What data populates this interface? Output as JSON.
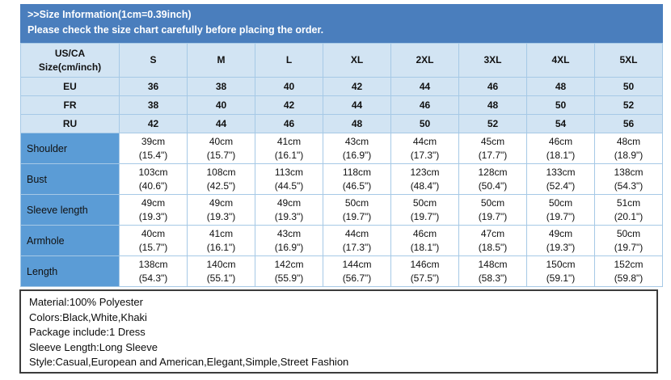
{
  "page": {
    "title_line1": ">>Size Information(1cm=0.39inch)",
    "title_line2": "Please check the size chart carefully before placing the order."
  },
  "table": {
    "corner_header_line1": "US/CA",
    "corner_header_line2": "Size(cm/inch)",
    "size_columns": [
      "S",
      "M",
      "L",
      "XL",
      "2XL",
      "3XL",
      "4XL",
      "5XL"
    ],
    "region_rows": [
      {
        "label": "EU",
        "values": [
          "36",
          "38",
          "40",
          "42",
          "44",
          "46",
          "48",
          "50"
        ]
      },
      {
        "label": "FR",
        "values": [
          "38",
          "40",
          "42",
          "44",
          "46",
          "48",
          "50",
          "52"
        ]
      },
      {
        "label": "RU",
        "values": [
          "42",
          "44",
          "46",
          "48",
          "50",
          "52",
          "54",
          "56"
        ]
      }
    ],
    "measurement_rows": [
      {
        "label": "Shoulder",
        "cm": [
          "39cm",
          "40cm",
          "41cm",
          "43cm",
          "44cm",
          "45cm",
          "46cm",
          "48cm"
        ],
        "inch": [
          "(15.4\")",
          "(15.7\")",
          "(16.1\")",
          "(16.9\")",
          "(17.3\")",
          "(17.7\")",
          "(18.1\")",
          "(18.9\")"
        ]
      },
      {
        "label": "Bust",
        "cm": [
          "103cm",
          "108cm",
          "113cm",
          "118cm",
          "123cm",
          "128cm",
          "133cm",
          "138cm"
        ],
        "inch": [
          "(40.6\")",
          "(42.5\")",
          "(44.5\")",
          "(46.5\")",
          "(48.4\")",
          "(50.4\")",
          "(52.4\")",
          "(54.3\")"
        ]
      },
      {
        "label": "Sleeve length",
        "cm": [
          "49cm",
          "49cm",
          "49cm",
          "50cm",
          "50cm",
          "50cm",
          "50cm",
          "51cm"
        ],
        "inch": [
          "(19.3\")",
          "(19.3\")",
          "(19.3\")",
          "(19.7\")",
          "(19.7\")",
          "(19.7\")",
          "(19.7\")",
          "(20.1\")"
        ]
      },
      {
        "label": "Armhole",
        "cm": [
          "40cm",
          "41cm",
          "43cm",
          "44cm",
          "46cm",
          "47cm",
          "49cm",
          "50cm"
        ],
        "inch": [
          "(15.7\")",
          "(16.1\")",
          "(16.9\")",
          "(17.3\")",
          "(18.1\")",
          "(18.5\")",
          "(19.3\")",
          "(19.7\")"
        ]
      },
      {
        "label": "Length",
        "cm": [
          "138cm",
          "140cm",
          "142cm",
          "144cm",
          "146cm",
          "148cm",
          "150cm",
          "152cm"
        ],
        "inch": [
          "(54.3\")",
          "(55.1\")",
          "(55.9\")",
          "(56.7\")",
          "(57.5\")",
          "(58.3\")",
          "(59.1\")",
          "(59.8\")"
        ]
      }
    ]
  },
  "footer": {
    "lines": [
      "Material:100% Polyester",
      "Colors:Black,White,Khaki",
      "Package include:1 Dress",
      "Sleeve Length:Long Sleeve",
      "Style:Casual,European and American,Elegant,Simple,Street Fashion"
    ]
  },
  "colors": {
    "title_bar_bg": "#4a7ebd",
    "title_text": "#ffffff",
    "light_cell_bg": "#d2e4f3",
    "label_cell_bg": "#5b9cd6",
    "border_light": "#a6c9e6"
  }
}
